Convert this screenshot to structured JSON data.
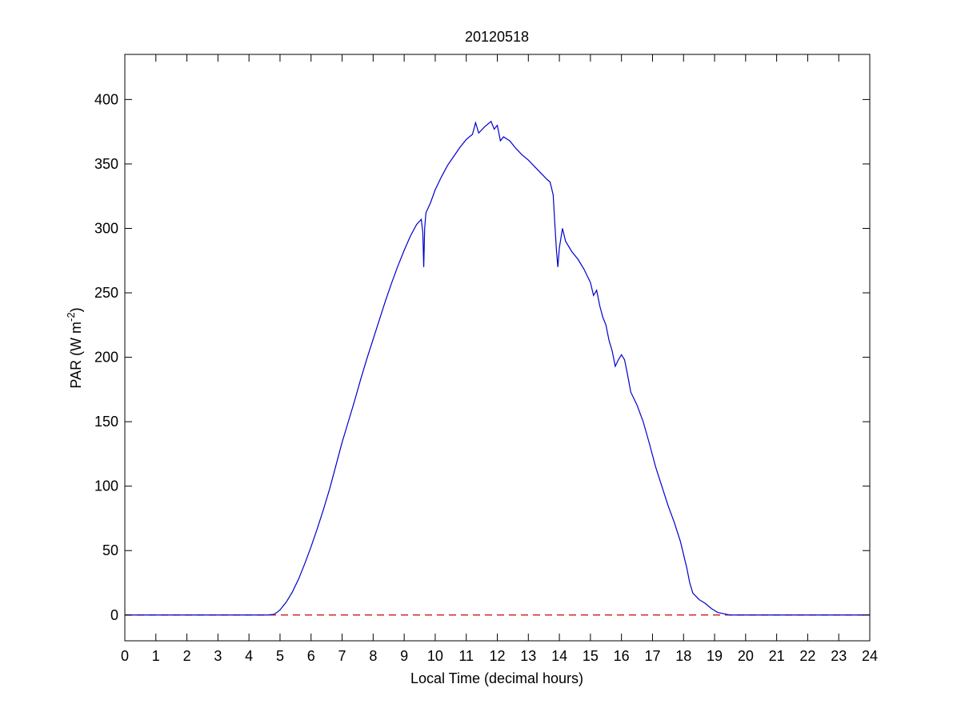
{
  "chart_data": {
    "type": "line",
    "title": "20120518",
    "xlabel": "Local Time (decimal hours)",
    "ylabel_main": "PAR (W m",
    "ylabel_sup": "-2",
    "ylabel_close": ")",
    "xlim": [
      0,
      24
    ],
    "ylim": [
      -20,
      435
    ],
    "xticks": [
      "0",
      "1",
      "2",
      "3",
      "4",
      "5",
      "6",
      "7",
      "8",
      "9",
      "10",
      "11",
      "12",
      "13",
      "14",
      "15",
      "16",
      "17",
      "18",
      "19",
      "20",
      "21",
      "22",
      "23",
      "24"
    ],
    "yticks": [
      "0",
      "50",
      "100",
      "150",
      "200",
      "250",
      "300",
      "350",
      "400"
    ],
    "grid": false,
    "series": [
      {
        "color": "#0000cc",
        "style": "solid",
        "points": [
          [
            0,
            0
          ],
          [
            4.6,
            0
          ],
          [
            4.8,
            0.5
          ],
          [
            4.9,
            2
          ],
          [
            5.0,
            4
          ],
          [
            5.2,
            10
          ],
          [
            5.4,
            18
          ],
          [
            5.6,
            28
          ],
          [
            5.8,
            40
          ],
          [
            6.0,
            53
          ],
          [
            6.2,
            67
          ],
          [
            6.4,
            82
          ],
          [
            6.6,
            98
          ],
          [
            6.8,
            116
          ],
          [
            7.0,
            134
          ],
          [
            7.2,
            150
          ],
          [
            7.4,
            166
          ],
          [
            7.6,
            183
          ],
          [
            7.8,
            199
          ],
          [
            8.0,
            214
          ],
          [
            8.2,
            229
          ],
          [
            8.4,
            244
          ],
          [
            8.6,
            258
          ],
          [
            8.8,
            271
          ],
          [
            9.0,
            283
          ],
          [
            9.2,
            294
          ],
          [
            9.4,
            303
          ],
          [
            9.55,
            307
          ],
          [
            9.6,
            297
          ],
          [
            9.63,
            270
          ],
          [
            9.66,
            300
          ],
          [
            9.7,
            312
          ],
          [
            9.85,
            320
          ],
          [
            10.0,
            330
          ],
          [
            10.2,
            340
          ],
          [
            10.4,
            349
          ],
          [
            10.6,
            356
          ],
          [
            10.8,
            363
          ],
          [
            11.0,
            369
          ],
          [
            11.2,
            373
          ],
          [
            11.3,
            382
          ],
          [
            11.4,
            374
          ],
          [
            11.6,
            379
          ],
          [
            11.8,
            383
          ],
          [
            11.9,
            377
          ],
          [
            12.0,
            380
          ],
          [
            12.1,
            368
          ],
          [
            12.2,
            371
          ],
          [
            12.4,
            368
          ],
          [
            12.6,
            362
          ],
          [
            12.8,
            357
          ],
          [
            13.0,
            353
          ],
          [
            13.2,
            348
          ],
          [
            13.4,
            343
          ],
          [
            13.6,
            338
          ],
          [
            13.7,
            336
          ],
          [
            13.8,
            326
          ],
          [
            13.85,
            305
          ],
          [
            13.9,
            285
          ],
          [
            13.95,
            270
          ],
          [
            14.0,
            285
          ],
          [
            14.1,
            300
          ],
          [
            14.2,
            290
          ],
          [
            14.4,
            282
          ],
          [
            14.6,
            276
          ],
          [
            14.8,
            268
          ],
          [
            15.0,
            258
          ],
          [
            15.1,
            248
          ],
          [
            15.2,
            252
          ],
          [
            15.3,
            240
          ],
          [
            15.4,
            231
          ],
          [
            15.5,
            225
          ],
          [
            15.6,
            213
          ],
          [
            15.7,
            205
          ],
          [
            15.8,
            193
          ],
          [
            15.9,
            198
          ],
          [
            16.0,
            202
          ],
          [
            16.1,
            198
          ],
          [
            16.2,
            186
          ],
          [
            16.3,
            173
          ],
          [
            16.5,
            163
          ],
          [
            16.7,
            150
          ],
          [
            16.9,
            133
          ],
          [
            17.1,
            115
          ],
          [
            17.3,
            100
          ],
          [
            17.5,
            85
          ],
          [
            17.7,
            72
          ],
          [
            17.9,
            57
          ],
          [
            18.1,
            37
          ],
          [
            18.2,
            25
          ],
          [
            18.3,
            17
          ],
          [
            18.5,
            12
          ],
          [
            18.7,
            9
          ],
          [
            18.9,
            5
          ],
          [
            19.1,
            2
          ],
          [
            19.3,
            1
          ],
          [
            19.5,
            0
          ],
          [
            24,
            0
          ]
        ]
      },
      {
        "color": "#cc0000",
        "style": "dashed",
        "points": [
          [
            0,
            0
          ],
          [
            24,
            0
          ]
        ]
      }
    ]
  }
}
